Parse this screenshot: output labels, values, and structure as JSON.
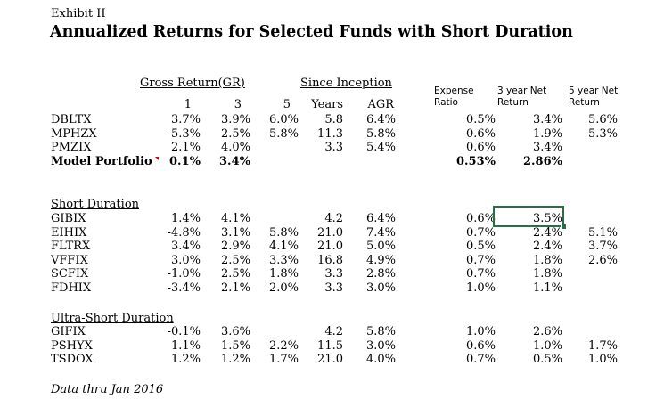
{
  "sheet": {
    "exhibit_label": "Exhibit II",
    "title": "Annualized Returns for Selected Funds with Short Duration",
    "footer_note": "Data thru Jan 2016"
  },
  "header": {
    "gross_return_group": "Gross Return(GR)",
    "since_inception_group": "Since Inception",
    "sub_columns": [
      "1",
      "3",
      "5",
      "Years",
      "AGR"
    ],
    "expense_ratio": "Expense Ratio",
    "net_return_3yr": "3 year Net Return",
    "net_return_5yr": "5 year Net Return"
  },
  "colors": {
    "selection": "#217346",
    "comment_flag": "#dd0000"
  },
  "selection": {
    "selected_fund": "GIBIX",
    "selected_column": "3 year Net Return",
    "value": "3.5%"
  },
  "sections": [
    {
      "heading": "",
      "rows": [
        {
          "ticker": "DBLTX",
          "gr1": "3.7%",
          "gr3": "3.9%",
          "gr5": "6.0%",
          "years": "5.8",
          "agr": "6.4%",
          "expense": "0.5%",
          "net3": "3.4%",
          "net5": "5.6%"
        },
        {
          "ticker": "MPHZX",
          "gr1": "-5.3%",
          "gr3": "2.5%",
          "gr5": "5.8%",
          "years": "11.3",
          "agr": "5.8%",
          "expense": "0.6%",
          "net3": "1.9%",
          "net5": "5.3%"
        },
        {
          "ticker": "PMZIX",
          "gr1": "2.1%",
          "gr3": "4.0%",
          "gr5": "",
          "years": "3.3",
          "agr": "5.4%",
          "expense": "0.6%",
          "net3": "3.4%",
          "net5": ""
        },
        {
          "ticker": "Model Portfolio",
          "bold": true,
          "comment": true,
          "gr1": "0.1%",
          "gr3": "3.4%",
          "gr5": "",
          "years": "",
          "agr": "",
          "expense": "0.53%",
          "net3": "2.86%",
          "net5": ""
        }
      ]
    },
    {
      "heading": "Short Duration",
      "rows": [
        {
          "ticker": "GIBIX",
          "gr1": "1.4%",
          "gr3": "4.1%",
          "gr5": "",
          "years": "4.2",
          "agr": "6.4%",
          "expense": "0.6%",
          "net3": "3.5%",
          "selected_cell": "net3",
          "net5": ""
        },
        {
          "ticker": "EIHIX",
          "gr1": "-4.8%",
          "gr3": "3.1%",
          "gr5": "5.8%",
          "years": "21.0",
          "agr": "7.4%",
          "expense": "0.7%",
          "net3": "2.4%",
          "net5": "5.1%"
        },
        {
          "ticker": "FLTRX",
          "gr1": "3.4%",
          "gr3": "2.9%",
          "gr5": "4.1%",
          "years": "21.0",
          "agr": "5.0%",
          "expense": "0.5%",
          "net3": "2.4%",
          "net5": "3.7%"
        },
        {
          "ticker": "VFFIX",
          "gr1": "3.0%",
          "gr3": "2.5%",
          "gr5": "3.3%",
          "years": "16.8",
          "agr": "4.9%",
          "expense": "0.7%",
          "net3": "1.8%",
          "net5": "2.6%"
        },
        {
          "ticker": "SCFIX",
          "gr1": "-1.0%",
          "gr3": "2.5%",
          "gr5": "1.8%",
          "years": "3.3",
          "agr": "2.8%",
          "expense": "0.7%",
          "net3": "1.8%",
          "net5": ""
        },
        {
          "ticker": "FDHIX",
          "gr1": "-3.4%",
          "gr3": "2.1%",
          "gr5": "2.0%",
          "years": "3.3",
          "agr": "3.0%",
          "expense": "1.0%",
          "net3": "1.1%",
          "net5": ""
        }
      ]
    },
    {
      "heading": "Ultra-Short Duration",
      "rows": [
        {
          "ticker": "GIFIX",
          "gr1": "-0.1%",
          "gr3": "3.6%",
          "gr5": "",
          "years": "4.2",
          "agr": "5.8%",
          "expense": "1.0%",
          "net3": "2.6%",
          "net5": ""
        },
        {
          "ticker": "PSHYX",
          "gr1": "1.1%",
          "gr3": "1.5%",
          "gr5": "2.2%",
          "years": "11.5",
          "agr": "3.0%",
          "expense": "0.6%",
          "net3": "1.0%",
          "net5": "1.7%"
        },
        {
          "ticker": "TSDOX",
          "gr1": "1.2%",
          "gr3": "1.2%",
          "gr5": "1.7%",
          "years": "21.0",
          "agr": "4.0%",
          "expense": "0.7%",
          "net3": "0.5%",
          "net5": "1.0%"
        }
      ]
    }
  ]
}
